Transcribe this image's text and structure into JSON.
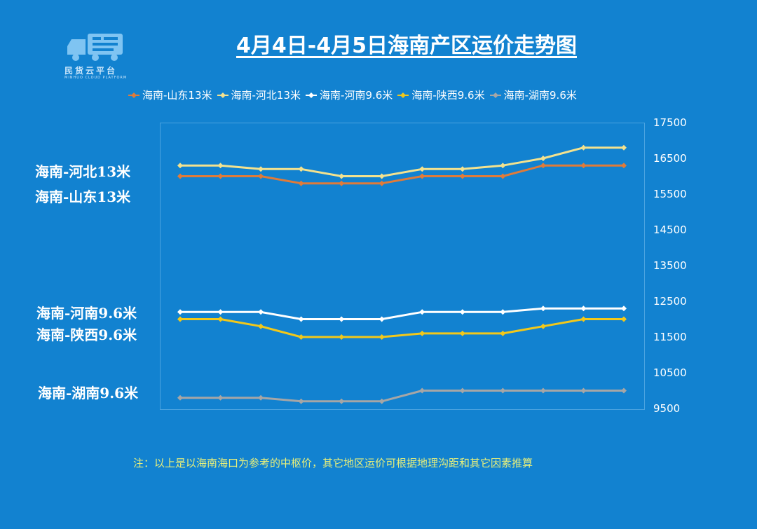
{
  "logo": {
    "icon": "delivery-truck-icon",
    "text_cn": "民货云平台",
    "text_en": "MINHUO CLOUD PLATFORM"
  },
  "title": "4月4日-4月5日海南产区运价走势图",
  "note": "注：以上是以海南海口为参考的中枢价，其它地区运价可根据地理沟距和其它因素推算",
  "side_labels": [
    "海南-河北13米",
    "海南-山东13米",
    "海南-河南9.6米",
    "海南-陕西9.6米",
    "海南-湖南9.6米"
  ],
  "chart_data": {
    "type": "line",
    "title": "4月4日-4月5日海南产区运价走势图",
    "xlabel": "",
    "ylabel": "",
    "ylim": [
      9500,
      17500
    ],
    "yticks": [
      9500,
      10500,
      11500,
      12500,
      13500,
      14500,
      15500,
      16500,
      17500
    ],
    "y_axis_side": "right",
    "grid": false,
    "legend_position": "top",
    "point_count": 12,
    "series": [
      {
        "name": "海南-山东13米",
        "color": "#e07b39",
        "values": [
          16000,
          16000,
          16000,
          15800,
          15800,
          15800,
          16000,
          16000,
          16000,
          16300,
          16300,
          16300
        ]
      },
      {
        "name": "海南-河北13米",
        "color": "#f3e28f",
        "values": [
          16300,
          16300,
          16200,
          16200,
          16000,
          16000,
          16200,
          16200,
          16300,
          16500,
          16800,
          16800
        ]
      },
      {
        "name": "海南-河南9.6米",
        "color": "#ffffff",
        "values": [
          12200,
          12200,
          12200,
          12000,
          12000,
          12000,
          12200,
          12200,
          12200,
          12300,
          12300,
          12300
        ]
      },
      {
        "name": "海南-陕西9.6米",
        "color": "#f2c81a",
        "values": [
          12000,
          12000,
          11800,
          11500,
          11500,
          11500,
          11600,
          11600,
          11600,
          11800,
          12000,
          12000
        ]
      },
      {
        "name": "海南-湖南9.6米",
        "color": "#a6a6a6",
        "values": [
          9800,
          9800,
          9800,
          9700,
          9700,
          9700,
          10000,
          10000,
          10000,
          10000,
          10000,
          10000
        ]
      }
    ]
  }
}
